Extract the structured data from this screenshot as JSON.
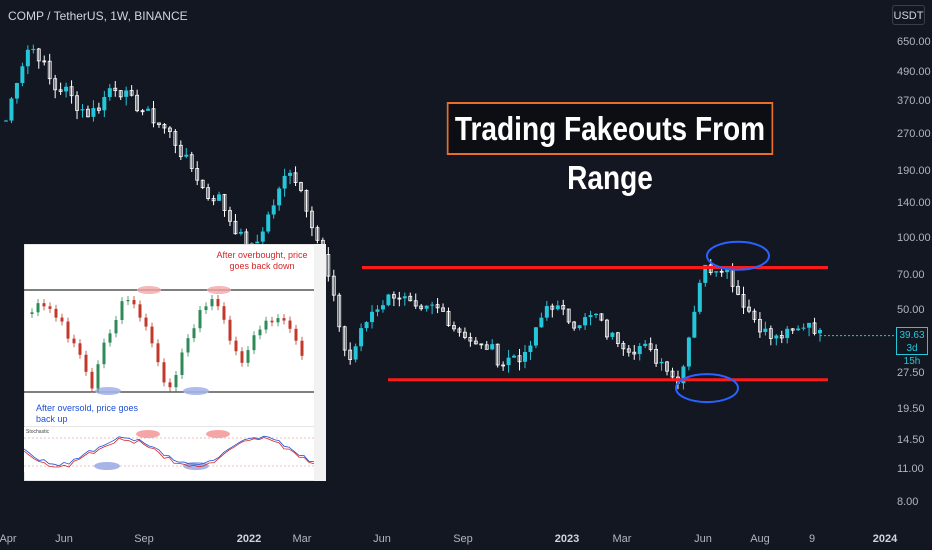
{
  "header": {
    "symbol": "COMP / TetherUS, 1W, BINANCE",
    "currency_button": "USDT"
  },
  "annotation_title": "Trading Fakeouts From Range",
  "last_price": {
    "value": "39.63",
    "countdown": "3d 15h"
  },
  "colors": {
    "background": "#131722",
    "bullish": "#26c6da",
    "bearish": "#ffffff",
    "range_lines": "#ff1a1a",
    "highlight_circle": "#2962ff",
    "title_border": "#e86f2a"
  },
  "inset": {
    "overbought_note": "After overbought, price goes back down",
    "oversold_note": "After oversold, price goes back up",
    "indicator_label": "Stochastic"
  },
  "chart_data": {
    "type": "candlestick",
    "symbol": "COMP / TetherUS",
    "interval": "1W",
    "exchange": "BINANCE",
    "y_scale": "log",
    "y_ticks": [
      "650.00",
      "490.00",
      "370.00",
      "270.00",
      "190.00",
      "140.00",
      "100.00",
      "70.00",
      "50.00",
      "37.50",
      "27.50",
      "19.50",
      "14.50",
      "11.00",
      "8.00"
    ],
    "x_ticks": [
      {
        "label": "Apr",
        "bold": false
      },
      {
        "label": "Jun",
        "bold": false
      },
      {
        "label": "Sep",
        "bold": false
      },
      {
        "label": "2022",
        "bold": true
      },
      {
        "label": "Mar",
        "bold": false
      },
      {
        "label": "Jun",
        "bold": false
      },
      {
        "label": "Sep",
        "bold": false
      },
      {
        "label": "2023",
        "bold": true
      },
      {
        "label": "Mar",
        "bold": false
      },
      {
        "label": "Jun",
        "bold": false
      },
      {
        "label": "Aug",
        "bold": false
      },
      {
        "label": "9",
        "bold": false
      },
      {
        "label": "2024",
        "bold": true
      }
    ],
    "range_resistance": 76,
    "range_support": 26,
    "last_close": 39.63,
    "close_path": [
      310,
      480,
      640,
      560,
      420,
      420,
      360,
      330,
      360,
      440,
      400,
      360,
      330,
      300,
      270,
      220,
      190,
      150,
      150,
      120,
      100,
      90,
      118,
      150,
      200,
      160,
      115,
      80,
      50,
      30,
      40,
      50,
      55,
      60,
      55,
      48,
      52,
      50,
      43,
      40,
      35,
      36,
      30,
      33,
      32,
      42,
      55,
      50,
      45,
      46,
      48,
      40,
      38,
      35,
      36,
      32,
      30,
      25,
      42,
      75,
      76,
      78,
      60,
      50,
      43,
      38,
      40,
      41,
      46,
      40
    ],
    "fakeouts": [
      {
        "type": "above_resistance",
        "price": 85
      },
      {
        "type": "below_support",
        "price": 24
      }
    ]
  }
}
